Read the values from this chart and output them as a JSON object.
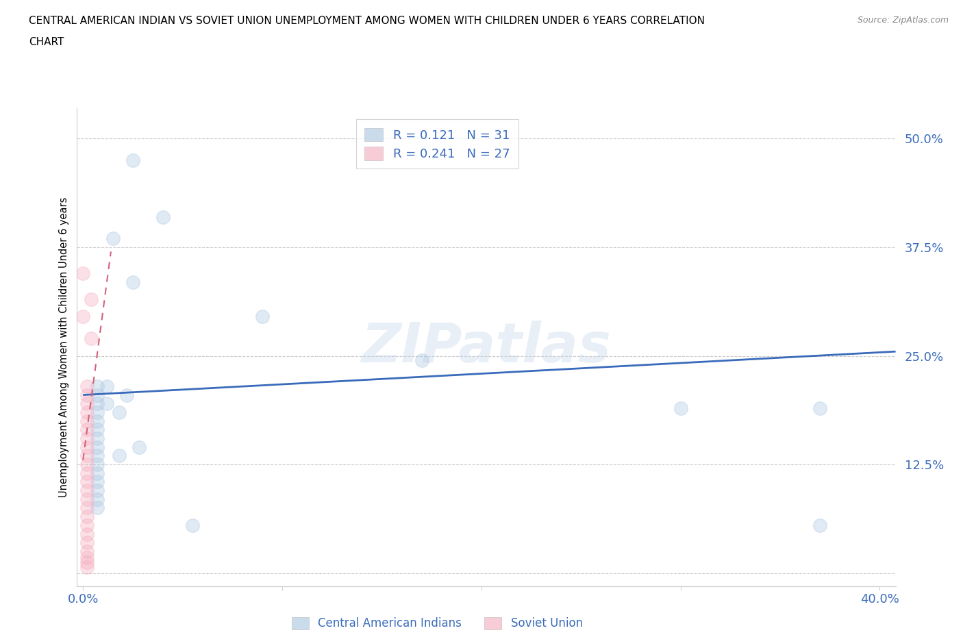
{
  "title_line1": "CENTRAL AMERICAN INDIAN VS SOVIET UNION UNEMPLOYMENT AMONG WOMEN WITH CHILDREN UNDER 6 YEARS CORRELATION",
  "title_line2": "CHART",
  "source": "Source: ZipAtlas.com",
  "ylabel": "Unemployment Among Women with Children Under 6 years",
  "xmin": -0.003,
  "xmax": 0.408,
  "ymin": -0.015,
  "ymax": 0.535,
  "yticks": [
    0.0,
    0.125,
    0.25,
    0.375,
    0.5
  ],
  "ytick_labels": [
    "",
    "12.5%",
    "25.0%",
    "37.5%",
    "50.0%"
  ],
  "xticks": [
    0.0,
    0.1,
    0.2,
    0.3,
    0.4
  ],
  "xtick_labels": [
    "0.0%",
    "",
    "",
    "",
    "40.0%"
  ],
  "blue_R": 0.121,
  "blue_N": 31,
  "pink_R": 0.241,
  "pink_N": 27,
  "blue_scatter_x": [
    0.025,
    0.04,
    0.015,
    0.09,
    0.025,
    0.007,
    0.007,
    0.007,
    0.007,
    0.007,
    0.007,
    0.007,
    0.007,
    0.007,
    0.012,
    0.012,
    0.018,
    0.018,
    0.022,
    0.028,
    0.055,
    0.17,
    0.3,
    0.37,
    0.37,
    0.007,
    0.007,
    0.007,
    0.007,
    0.007,
    0.007
  ],
  "blue_scatter_y": [
    0.475,
    0.41,
    0.385,
    0.295,
    0.335,
    0.215,
    0.205,
    0.195,
    0.185,
    0.175,
    0.165,
    0.155,
    0.145,
    0.135,
    0.215,
    0.195,
    0.185,
    0.135,
    0.205,
    0.145,
    0.055,
    0.245,
    0.19,
    0.19,
    0.055,
    0.125,
    0.115,
    0.105,
    0.095,
    0.085,
    0.075
  ],
  "pink_scatter_x": [
    0.0,
    0.0,
    0.004,
    0.004,
    0.002,
    0.002,
    0.002,
    0.002,
    0.002,
    0.002,
    0.002,
    0.002,
    0.002,
    0.002,
    0.002,
    0.002,
    0.002,
    0.002,
    0.002,
    0.002,
    0.002,
    0.002,
    0.002,
    0.002,
    0.002,
    0.002,
    0.002
  ],
  "pink_scatter_y": [
    0.345,
    0.295,
    0.315,
    0.27,
    0.215,
    0.205,
    0.195,
    0.185,
    0.175,
    0.165,
    0.155,
    0.145,
    0.135,
    0.125,
    0.115,
    0.105,
    0.095,
    0.085,
    0.075,
    0.065,
    0.055,
    0.045,
    0.035,
    0.025,
    0.018,
    0.012,
    0.007
  ],
  "blue_line_x": [
    0.0,
    0.408
  ],
  "blue_line_y": [
    0.205,
    0.255
  ],
  "pink_line_x": [
    0.0,
    0.014
  ],
  "pink_line_y": [
    0.13,
    0.37
  ],
  "blue_color": "#A8C4E0",
  "pink_color": "#F4AABB",
  "blue_line_color": "#3A6BBB",
  "pink_line_color": "#D4607A",
  "legend_text_color": "#3A6BBB",
  "watermark": "ZIPatlas",
  "marker_size": 200,
  "marker_alpha": 0.35,
  "marker_lw": 1.0
}
